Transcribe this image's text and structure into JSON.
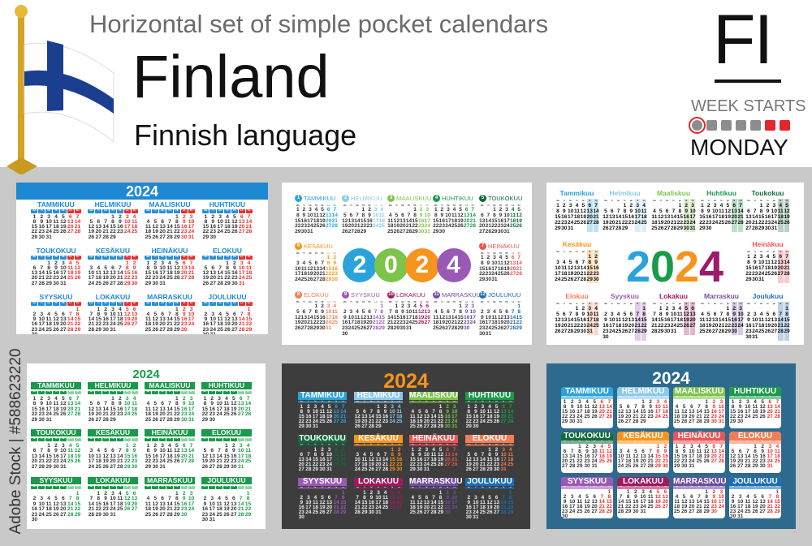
{
  "header": {
    "subtitle": "Horizontal set of simple pocket calendars",
    "country": "Finland",
    "language": "Finnish language",
    "code": "FI",
    "week_starts_label": "WEEK STARTS",
    "week_start_day": "MONDAY"
  },
  "watermark": "Adobe Stock | #588623220",
  "year": "2024",
  "weekdays": [
    "ma",
    "ti",
    "ke",
    "to",
    "pe",
    "la",
    "su"
  ],
  "months": [
    {
      "name": "Tammikuu",
      "days": 31,
      "first_weekday": "ma"
    },
    {
      "name": "Helmikuu",
      "days": 29,
      "first_weekday": "to"
    },
    {
      "name": "Maaliskuu",
      "days": 31,
      "first_weekday": "pe"
    },
    {
      "name": "Huhtikuu",
      "days": 30,
      "first_weekday": "ma"
    },
    {
      "name": "Toukokuu",
      "days": 31,
      "first_weekday": "ke"
    },
    {
      "name": "Kesäkuu",
      "days": 30,
      "first_weekday": "la"
    },
    {
      "name": "Heinäkuu",
      "days": 31,
      "first_weekday": "ma"
    },
    {
      "name": "Elokuu",
      "days": 31,
      "first_weekday": "to"
    },
    {
      "name": "Syyskuu",
      "days": 30,
      "first_weekday": "su"
    },
    {
      "name": "Lokakuu",
      "days": 31,
      "first_weekday": "ti"
    },
    {
      "name": "Marraskuu",
      "days": 30,
      "first_weekday": "pe"
    },
    {
      "name": "Joulukuu",
      "days": 31,
      "first_weekday": "su"
    }
  ],
  "palette": [
    "#2aa3dc",
    "#8cc8ec",
    "#7dc44a",
    "#1a9a4a",
    "#13693c",
    "#f7941d",
    "#ea5455",
    "#f07d55",
    "#9b59b6",
    "#a0185e",
    "#6f4ea0",
    "#1b6db5"
  ],
  "colors": {
    "blue": "#1e88d3",
    "red": "#e8312f",
    "green": "#1a9a4a",
    "dark_bg": "#3d3d3d",
    "teal_bg": "#2e6a8e",
    "year_orange": "#f7941d",
    "year_digits": [
      "#2aa3dc",
      "#1a9a4a",
      "#f7941d",
      "#9b1a6c"
    ]
  },
  "flag": {
    "cross": "#1a3f8f",
    "field": "#ffffff",
    "pole": "#d4a326"
  }
}
